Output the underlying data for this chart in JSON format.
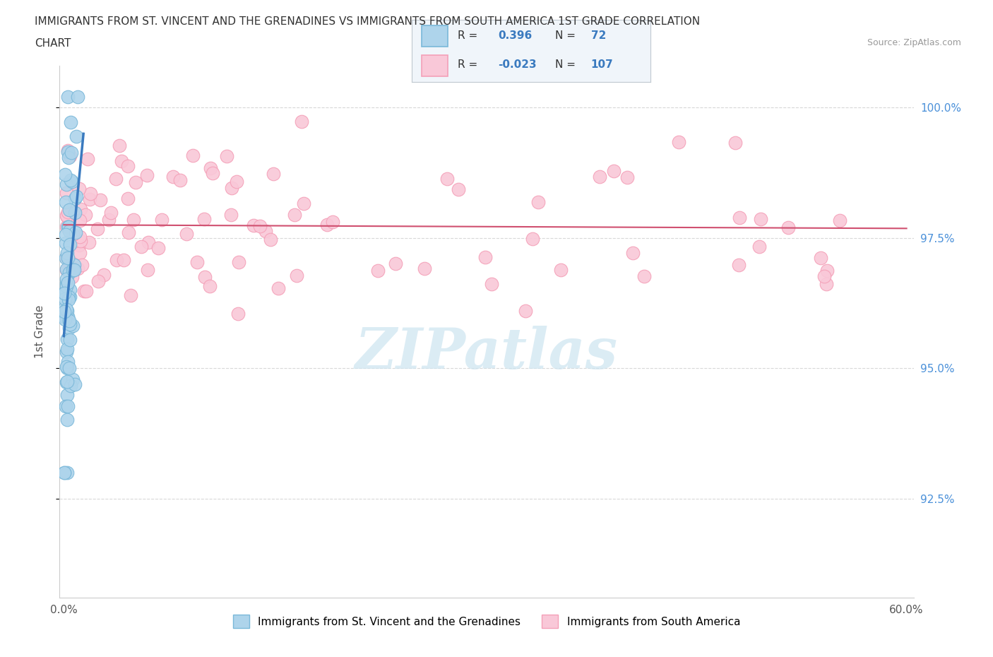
{
  "title_line1": "IMMIGRANTS FROM ST. VINCENT AND THE GRENADINES VS IMMIGRANTS FROM SOUTH AMERICA 1ST GRADE CORRELATION",
  "title_line2": "CHART",
  "source": "Source: ZipAtlas.com",
  "ylabel": "1st Grade",
  "ytick_values": [
    0.925,
    0.95,
    0.975,
    1.0
  ],
  "ytick_labels": [
    "92.5%",
    "95.0%",
    "97.5%",
    "100.0%"
  ],
  "xlim": [
    -0.003,
    0.605
  ],
  "ylim": [
    0.906,
    1.008
  ],
  "blue_color": "#7ab8d9",
  "blue_fill": "#aed4eb",
  "pink_color": "#f4a0b8",
  "pink_fill": "#f9c8d8",
  "line_blue_color": "#3a7abf",
  "line_pink_color": "#d05070",
  "legend_blue_label": "Immigrants from St. Vincent and the Grenadines",
  "legend_pink_label": "Immigrants from South America",
  "R_blue": 0.396,
  "N_blue": 72,
  "R_pink": -0.023,
  "N_pink": 107,
  "background_color": "#ffffff",
  "grid_color": "#d8d8d8",
  "watermark_color": "#cce4f0",
  "scatter_size": 180
}
